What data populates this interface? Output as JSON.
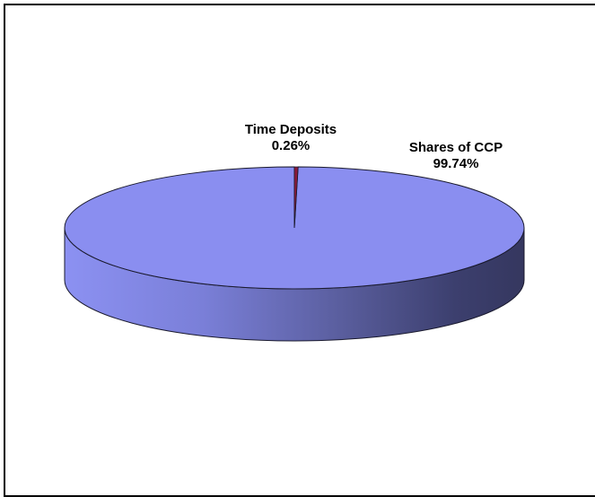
{
  "chart_data": {
    "type": "pie",
    "style": "3d",
    "slices": [
      {
        "label": "Shares of CCP",
        "percent_label": "99.74%",
        "value": 99.74,
        "color": "#8a8ef0"
      },
      {
        "label": "Time Deposits",
        "percent_label": "0.26%",
        "value": 0.26,
        "color": "#8b1a3a"
      }
    ]
  }
}
